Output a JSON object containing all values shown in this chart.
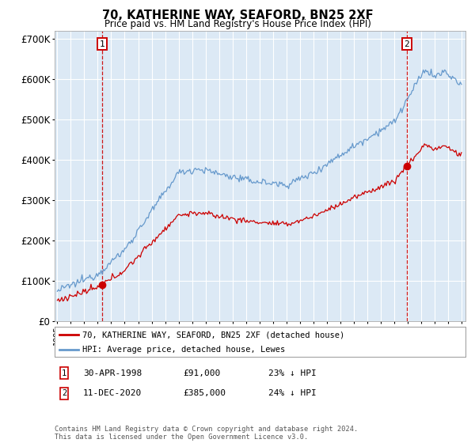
{
  "title": "70, KATHERINE WAY, SEAFORD, BN25 2XF",
  "subtitle": "Price paid vs. HM Land Registry's House Price Index (HPI)",
  "sale1_date": 1998.33,
  "sale1_price": 91000,
  "sale2_date": 2020.95,
  "sale2_price": 385000,
  "sale1_date_str": "30-APR-1998",
  "sale1_price_str": "£91,000",
  "sale1_hpi_str": "23% ↓ HPI",
  "sale2_date_str": "11-DEC-2020",
  "sale2_price_str": "£385,000",
  "sale2_hpi_str": "24% ↓ HPI",
  "ylabel_ticks": [
    "£0",
    "£100K",
    "£200K",
    "£300K",
    "£400K",
    "£500K",
    "£600K",
    "£700K"
  ],
  "ytick_values": [
    0,
    100000,
    200000,
    300000,
    400000,
    500000,
    600000,
    700000
  ],
  "ylim": [
    0,
    720000
  ],
  "xlim": [
    1994.8,
    2025.3
  ],
  "legend_line1": "70, KATHERINE WAY, SEAFORD, BN25 2XF (detached house)",
  "legend_line2": "HPI: Average price, detached house, Lewes",
  "footnote": "Contains HM Land Registry data © Crown copyright and database right 2024.\nThis data is licensed under the Open Government Licence v3.0.",
  "bg_color": "#dce9f5",
  "line_red_color": "#cc0000",
  "line_blue_color": "#6699cc",
  "grid_color": "#ffffff"
}
